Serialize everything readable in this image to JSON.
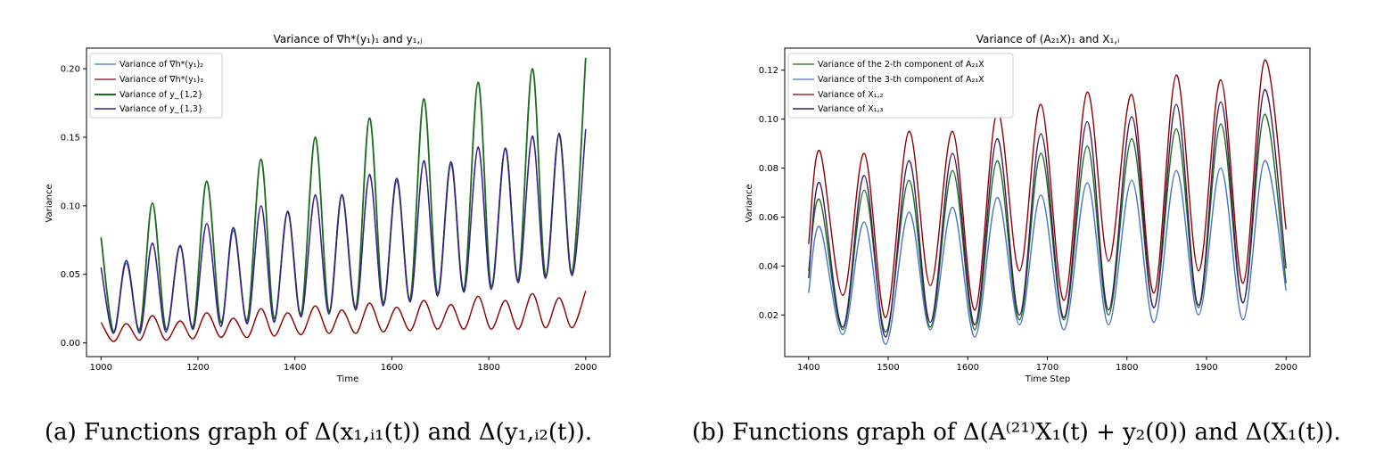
{
  "panels": [
    {
      "title": "Variance of ∇h*(y₁)₁ and y₁,ⱼ",
      "xlabel": "Time",
      "ylabel": "Variance",
      "xticks": [
        "1000",
        "1200",
        "1400",
        "1600",
        "1800",
        "2000"
      ],
      "yticks": [
        "0.00",
        "0.05",
        "0.10",
        "0.15",
        "0.20"
      ],
      "legend": [
        "Variance of ∇h*(y₁)₂",
        "Variance of ∇h*(y₁)₃",
        "Variance of y_{1,2}",
        "Variance of y_{1,3}"
      ]
    },
    {
      "title": "Variance of (A₂₁X)₁ and X₁,ᵢ",
      "xlabel": "Time Step",
      "ylabel": "Variance",
      "xticks": [
        "1400",
        "1500",
        "1600",
        "1700",
        "1800",
        "1900",
        "2000"
      ],
      "yticks": [
        "0.02",
        "0.04",
        "0.06",
        "0.08",
        "0.10",
        "0.12"
      ],
      "legend": [
        "Variance of the 2-th component of A₂₁X",
        "Variance of the 3-th component of A₂₁X",
        "Variance of X₁,₂",
        "Variance of X₁,₃"
      ]
    }
  ],
  "captions": {
    "a": "(a) Functions graph of Δ(x₁,ᵢ₁(t)) and Δ(y₁,ᵢ₂(t)).",
    "b": "(b) Functions graph of Δ(A⁽²¹⁾X₁(t) + y₂(0)) and Δ(X₁(t))."
  },
  "chart_data": [
    {
      "type": "line",
      "title": "Variance of ∇h*(y₁)₁ and y₁,ⱼ",
      "xlabel": "Time",
      "ylabel": "Variance",
      "xlim": [
        970,
        2050
      ],
      "ylim": [
        -0.01,
        0.215
      ],
      "legend_position": "top-left",
      "x": [
        1000,
        1026,
        1052,
        1080,
        1106,
        1134,
        1163,
        1190,
        1218,
        1247,
        1273,
        1302,
        1330,
        1357,
        1385,
        1413,
        1442,
        1470,
        1497,
        1526,
        1554,
        1582,
        1610,
        1638,
        1666,
        1694,
        1722,
        1749,
        1778,
        1805,
        1834,
        1861,
        1890,
        1917,
        1945,
        1972,
        2000
      ],
      "series": [
        {
          "name": "Variance of ∇h*(y₁)₂",
          "color": "#4472c4",
          "values": [
            0.055,
            0.008,
            0.058,
            0.007,
            0.072,
            0.008,
            0.07,
            0.01,
            0.087,
            0.012,
            0.082,
            0.015,
            0.1,
            0.016,
            0.095,
            0.02,
            0.107,
            0.022,
            0.108,
            0.025,
            0.122,
            0.028,
            0.118,
            0.03,
            0.132,
            0.035,
            0.13,
            0.038,
            0.142,
            0.04,
            0.142,
            0.045,
            0.15,
            0.048,
            0.152,
            0.05,
            0.155
          ]
        },
        {
          "name": "Variance of ∇h*(y₁)₃",
          "color": "#8b0000",
          "values": [
            0.015,
            0.001,
            0.014,
            0.002,
            0.02,
            0.002,
            0.016,
            0.003,
            0.022,
            0.004,
            0.018,
            0.004,
            0.025,
            0.005,
            0.022,
            0.006,
            0.027,
            0.007,
            0.024,
            0.007,
            0.029,
            0.008,
            0.026,
            0.009,
            0.031,
            0.01,
            0.028,
            0.01,
            0.034,
            0.01,
            0.031,
            0.01,
            0.036,
            0.011,
            0.033,
            0.011,
            0.038
          ]
        },
        {
          "name": "Variance of y_{1,2}",
          "color": "#1a6b1a",
          "values": [
            0.077,
            0.008,
            0.06,
            0.01,
            0.102,
            0.01,
            0.071,
            0.012,
            0.118,
            0.015,
            0.084,
            0.017,
            0.134,
            0.018,
            0.096,
            0.021,
            0.15,
            0.023,
            0.108,
            0.026,
            0.164,
            0.029,
            0.12,
            0.032,
            0.178,
            0.036,
            0.132,
            0.039,
            0.19,
            0.041,
            0.142,
            0.046,
            0.2,
            0.049,
            0.152,
            0.051,
            0.208
          ]
        },
        {
          "name": "Variance of y_{1,3}",
          "color": "#3c1a8b",
          "values": [
            0.055,
            0.007,
            0.06,
            0.008,
            0.073,
            0.008,
            0.071,
            0.01,
            0.087,
            0.012,
            0.084,
            0.014,
            0.1,
            0.015,
            0.096,
            0.019,
            0.108,
            0.021,
            0.108,
            0.024,
            0.123,
            0.027,
            0.12,
            0.03,
            0.133,
            0.034,
            0.132,
            0.037,
            0.143,
            0.039,
            0.142,
            0.044,
            0.151,
            0.047,
            0.153,
            0.049,
            0.156
          ]
        }
      ]
    },
    {
      "type": "line",
      "title": "Variance of (A₂₁X)₁ and X₁,ᵢ",
      "xlabel": "Time Step",
      "ylabel": "Variance",
      "xlim": [
        1370,
        2030
      ],
      "ylim": [
        0.003,
        0.129
      ],
      "legend_position": "top-left",
      "x": [
        1400,
        1414,
        1443,
        1470,
        1497,
        1526,
        1553,
        1581,
        1609,
        1637,
        1665,
        1692,
        1721,
        1750,
        1777,
        1806,
        1834,
        1862,
        1890,
        1918,
        1946,
        1973,
        2000
      ],
      "series": [
        {
          "name": "Variance of the 2-th component of A₂₁X",
          "color": "#1a6b1a",
          "values": [
            0.038,
            0.067,
            0.014,
            0.071,
            0.013,
            0.075,
            0.015,
            0.079,
            0.014,
            0.083,
            0.018,
            0.086,
            0.018,
            0.089,
            0.02,
            0.092,
            0.023,
            0.096,
            0.023,
            0.098,
            0.025,
            0.102,
            0.033
          ]
        },
        {
          "name": "Variance of the 3-th component of A₂₁X",
          "color": "#4472c4",
          "values": [
            0.029,
            0.056,
            0.012,
            0.058,
            0.008,
            0.062,
            0.014,
            0.064,
            0.011,
            0.068,
            0.016,
            0.069,
            0.014,
            0.074,
            0.016,
            0.075,
            0.017,
            0.079,
            0.02,
            0.08,
            0.018,
            0.083,
            0.03
          ]
        },
        {
          "name": "Variance of X₁,₂",
          "color": "#8b0000",
          "values": [
            0.049,
            0.087,
            0.028,
            0.086,
            0.019,
            0.095,
            0.032,
            0.095,
            0.022,
            0.103,
            0.038,
            0.106,
            0.026,
            0.111,
            0.042,
            0.11,
            0.029,
            0.118,
            0.038,
            0.116,
            0.033,
            0.124,
            0.055
          ]
        },
        {
          "name": "Variance of X₁,₃",
          "color": "#3c1a5a",
          "values": [
            0.035,
            0.074,
            0.015,
            0.077,
            0.011,
            0.083,
            0.017,
            0.086,
            0.016,
            0.092,
            0.02,
            0.094,
            0.019,
            0.099,
            0.022,
            0.101,
            0.023,
            0.106,
            0.024,
            0.107,
            0.025,
            0.112,
            0.039
          ]
        }
      ]
    }
  ]
}
